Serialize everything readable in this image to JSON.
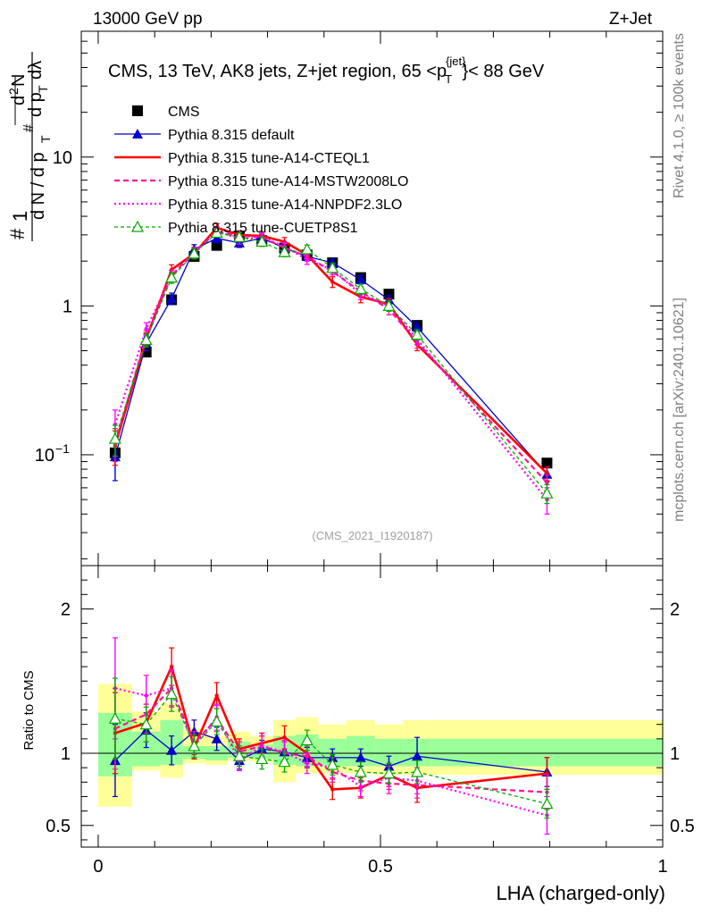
{
  "header": {
    "energy_label": "13000 GeV pp",
    "process_label": "Z+Jet"
  },
  "side_labels": {
    "rivet": "Rivet 4.1.0, ≥ 100k events",
    "mcplots": "mcplots.cern.ch [arXiv:2401.10621]"
  },
  "chart_data": [
    {
      "type": "scatter",
      "panel": "main",
      "title": "CMS, 13 TeV, AK8 jets, Z+jet region, 65 <p_T^{jet}< 88 GeV",
      "title_text": "CMS, 13 TeV, AK8 jets, Z+jet region, 65 <p",
      "title_sub": "T",
      "title_sup": "{jet}",
      "title_tail": "}< 88 GeV",
      "ylabel": "1/N dN/d p_T d λ",
      "yscale": "log",
      "ylim": [
        0.018,
        70
      ],
      "xlim": [
        -0.03,
        1.0
      ],
      "yticks": [
        {
          "value": 0.1,
          "label": "10",
          "sup": "−1"
        },
        {
          "value": 1,
          "label": "1",
          "sup": ""
        },
        {
          "value": 10,
          "label": "10",
          "sup": ""
        }
      ],
      "watermark": "(CMS_2021_I1920187)",
      "x": [
        0.03,
        0.085,
        0.13,
        0.17,
        0.21,
        0.25,
        0.29,
        0.33,
        0.37,
        0.415,
        0.465,
        0.515,
        0.565,
        0.795
      ],
      "series": [
        {
          "name": "CMS",
          "style": "data",
          "color": "#000000",
          "values": [
            0.103,
            0.49,
            1.1,
            2.15,
            2.55,
            2.95,
            2.75,
            2.45,
            2.2,
            1.95,
            1.55,
            1.2,
            0.74,
            0.088
          ],
          "err": [
            0.006,
            0.02,
            0.04,
            0.06,
            0.07,
            0.08,
            0.07,
            0.07,
            0.06,
            0.06,
            0.05,
            0.04,
            0.03,
            0.004
          ]
        },
        {
          "name": "Pythia 8.315 default",
          "style": "solid",
          "color": "#0000cd",
          "marker": "triangle",
          "values": [
            0.097,
            0.56,
            1.12,
            2.4,
            2.85,
            2.65,
            2.85,
            2.45,
            2.15,
            1.95,
            1.5,
            1.1,
            0.72,
            0.074
          ],
          "err": [
            0.03,
            0.06,
            0.1,
            0.18,
            0.2,
            0.18,
            0.18,
            0.16,
            0.14,
            0.12,
            0.1,
            0.08,
            0.06,
            0.008
          ]
        },
        {
          "name": "Pythia 8.315 tune-A14-CTEQL1",
          "style": "solid-thick",
          "color": "#ff0000",
          "values": [
            0.115,
            0.6,
            1.75,
            2.25,
            3.35,
            3.0,
            2.95,
            2.7,
            2.2,
            1.45,
            1.15,
            1.03,
            0.55,
            0.075
          ],
          "err": [
            0.03,
            0.06,
            0.14,
            0.18,
            0.22,
            0.2,
            0.2,
            0.18,
            0.15,
            0.12,
            0.1,
            0.09,
            0.05,
            0.008
          ]
        },
        {
          "name": "Pythia 8.315 tune-A14-MSTW2008LO",
          "style": "dashed",
          "color": "#ff1493",
          "values": [
            0.12,
            0.62,
            1.6,
            2.3,
            3.15,
            2.95,
            2.9,
            2.45,
            2.15,
            1.7,
            1.25,
            0.95,
            0.57,
            0.065
          ],
          "err": [
            0.03,
            0.06,
            0.13,
            0.18,
            0.2,
            0.2,
            0.2,
            0.17,
            0.15,
            0.12,
            0.1,
            0.08,
            0.05,
            0.008
          ]
        },
        {
          "name": "Pythia 8.315 tune-A14-NNPDF2.3LO",
          "style": "dotted",
          "color": "#ff00ff",
          "values": [
            0.16,
            0.7,
            1.6,
            2.25,
            3.2,
            2.8,
            2.9,
            2.5,
            2.05,
            1.75,
            1.2,
            1.0,
            0.6,
            0.05
          ],
          "err": [
            0.04,
            0.07,
            0.13,
            0.18,
            0.22,
            0.2,
            0.2,
            0.17,
            0.15,
            0.12,
            0.1,
            0.08,
            0.05,
            0.01
          ]
        },
        {
          "name": "Pythia 8.315 tune-CUETP8S1",
          "style": "dashed-small",
          "color": "#00aa00",
          "marker": "open-triangle",
          "values": [
            0.128,
            0.59,
            1.55,
            2.25,
            3.1,
            2.9,
            2.7,
            2.3,
            2.4,
            1.8,
            1.3,
            1.0,
            0.64,
            0.055
          ],
          "err": [
            0.03,
            0.06,
            0.13,
            0.18,
            0.2,
            0.2,
            0.19,
            0.16,
            0.16,
            0.12,
            0.1,
            0.08,
            0.05,
            0.008
          ]
        }
      ]
    },
    {
      "type": "scatter",
      "panel": "ratio",
      "title": "",
      "xlabel": "LHA (charged-only)",
      "ylabel": "Ratio to CMS",
      "yscale": "linear",
      "ylim": [
        0.35,
        2.3
      ],
      "xlim": [
        -0.03,
        1.0
      ],
      "yticks": [
        0.5,
        1,
        2
      ],
      "xticks": [
        0,
        0.5,
        1
      ],
      "reference": 1.0,
      "bands": {
        "edges": [
          0.0,
          0.06,
          0.11,
          0.15,
          0.19,
          0.23,
          0.27,
          0.31,
          0.35,
          0.39,
          0.44,
          0.49,
          0.54,
          0.59,
          1.0
        ],
        "yellow_lo": [
          0.63,
          0.88,
          0.83,
          0.93,
          0.92,
          0.95,
          0.94,
          0.8,
          0.86,
          0.86,
          0.86,
          0.85,
          0.85,
          0.85
        ],
        "yellow_hi": [
          1.48,
          1.29,
          1.35,
          1.17,
          1.12,
          1.15,
          1.12,
          1.23,
          1.25,
          1.2,
          1.23,
          1.2,
          1.23,
          1.23
        ],
        "green_lo": [
          0.84,
          0.91,
          0.92,
          0.96,
          0.95,
          0.97,
          0.96,
          0.92,
          0.91,
          0.91,
          0.91,
          0.91,
          0.91,
          0.91
        ],
        "green_hi": [
          1.28,
          1.15,
          1.23,
          1.05,
          1.05,
          1.08,
          1.06,
          1.12,
          1.13,
          1.1,
          1.12,
          1.1,
          1.1,
          1.1
        ]
      },
      "x": [
        0.03,
        0.085,
        0.13,
        0.17,
        0.21,
        0.25,
        0.29,
        0.33,
        0.37,
        0.415,
        0.465,
        0.515,
        0.565,
        0.795
      ],
      "series": [
        {
          "name": "Pythia 8.315 default",
          "style": "solid",
          "color": "#0000cd",
          "marker": "triangle",
          "values": [
            0.95,
            1.16,
            1.02,
            1.15,
            1.1,
            0.95,
            1.03,
            1.01,
            0.97,
            0.97,
            0.97,
            0.91,
            0.98,
            0.87
          ],
          "err": [
            0.25,
            0.12,
            0.1,
            0.08,
            0.08,
            0.06,
            0.06,
            0.07,
            0.07,
            0.06,
            0.06,
            0.07,
            0.13,
            0.1
          ]
        },
        {
          "name": "Pythia 8.315 tune-A14-CTEQL1",
          "style": "solid-thick",
          "color": "#ff0000",
          "values": [
            1.14,
            1.21,
            1.6,
            1.04,
            1.4,
            1.03,
            1.07,
            1.11,
            1.0,
            0.75,
            0.76,
            0.85,
            0.76,
            0.86
          ],
          "err": [
            0.28,
            0.13,
            0.13,
            0.08,
            0.09,
            0.07,
            0.07,
            0.08,
            0.07,
            0.07,
            0.07,
            0.08,
            0.1,
            0.11
          ]
        },
        {
          "name": "Pythia 8.315 tune-A14-MSTW2008LO",
          "style": "dashed",
          "color": "#ff1493",
          "values": [
            1.17,
            1.27,
            1.45,
            1.07,
            1.24,
            1.01,
            1.05,
            1.0,
            0.98,
            0.87,
            0.81,
            0.79,
            0.78,
            0.73
          ],
          "err": [
            0.28,
            0.13,
            0.12,
            0.08,
            0.09,
            0.07,
            0.07,
            0.08,
            0.07,
            0.07,
            0.07,
            0.07,
            0.09,
            0.12
          ]
        },
        {
          "name": "Pythia 8.315 tune-A14-NNPDF2.3LO",
          "style": "dotted",
          "color": "#ff00ff",
          "values": [
            1.45,
            1.4,
            1.45,
            1.05,
            1.25,
            0.95,
            1.05,
            1.01,
            0.93,
            0.9,
            0.77,
            0.83,
            0.81,
            0.57
          ],
          "err": [
            0.35,
            0.14,
            0.13,
            0.08,
            0.09,
            0.07,
            0.07,
            0.08,
            0.07,
            0.07,
            0.07,
            0.08,
            0.09,
            0.13
          ]
        },
        {
          "name": "Pythia 8.315 tune-CUETP8S1",
          "style": "dashed-small",
          "color": "#00aa00",
          "marker": "open-triangle",
          "values": [
            1.24,
            1.2,
            1.41,
            1.05,
            1.22,
            0.98,
            0.96,
            0.94,
            1.09,
            0.92,
            0.87,
            0.86,
            0.87,
            0.65
          ],
          "err": [
            0.28,
            0.12,
            0.12,
            0.08,
            0.09,
            0.07,
            0.07,
            0.07,
            0.07,
            0.07,
            0.07,
            0.07,
            0.08,
            0.1
          ]
        }
      ]
    }
  ]
}
